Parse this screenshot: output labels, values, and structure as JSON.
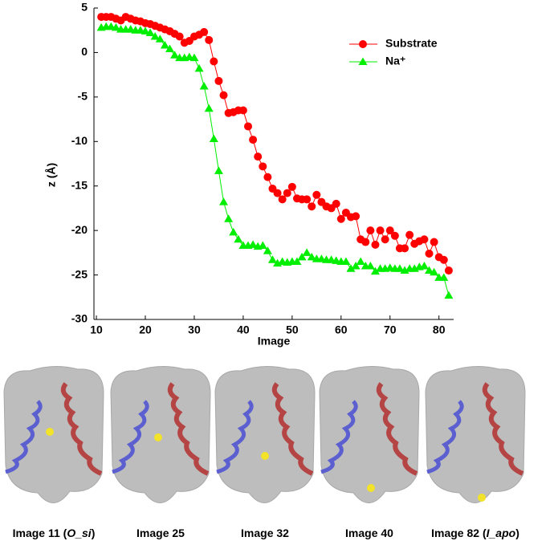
{
  "chart_data": {
    "type": "line",
    "x_label": "Image",
    "y_label": "z (Å)",
    "x": [
      11,
      12,
      13,
      14,
      15,
      16,
      17,
      18,
      19,
      20,
      21,
      22,
      23,
      24,
      25,
      26,
      27,
      28,
      29,
      30,
      31,
      32,
      33,
      34,
      35,
      36,
      37,
      38,
      39,
      40,
      41,
      42,
      43,
      44,
      45,
      46,
      47,
      48,
      49,
      50,
      51,
      52,
      53,
      54,
      55,
      56,
      57,
      58,
      59,
      60,
      61,
      62,
      63,
      64,
      65,
      66,
      67,
      68,
      69,
      70,
      71,
      72,
      73,
      74,
      75,
      76,
      77,
      78,
      79,
      80,
      81,
      82
    ],
    "series": [
      {
        "name": "Substrate",
        "color": "#ff0000",
        "marker": "circle",
        "values": [
          4,
          4,
          4,
          3.8,
          3.6,
          4,
          3.8,
          3.6,
          3.5,
          3.3,
          3.2,
          3,
          2.8,
          2.6,
          2.4,
          2.1,
          1.8,
          1.1,
          1.3,
          1.8,
          2,
          2.3,
          1.4,
          -1,
          -3.2,
          -4.8,
          -6.8,
          -6.7,
          -6.5,
          -6.5,
          -8.3,
          -9.8,
          -11.7,
          -12.8,
          -14,
          -15.3,
          -15.8,
          -16.5,
          -15.8,
          -15.1,
          -16.4,
          -16.5,
          -16.5,
          -17.3,
          -16,
          -16.8,
          -17.3,
          -17.5,
          -17,
          -18.7,
          -18,
          -18.5,
          -18.4,
          -21,
          -21.3,
          -20,
          -21.6,
          -20,
          -21,
          -20,
          -20.6,
          -22,
          -22,
          -20.5,
          -21.5,
          -21.2,
          -21,
          -22.6,
          -21.3,
          -23,
          -23.3,
          -24.5
        ]
      },
      {
        "name": "Na⁺",
        "color": "#00ee00",
        "marker": "triangle",
        "values": [
          2.8,
          2.9,
          2.9,
          2.8,
          2.6,
          2.6,
          2.6,
          2.5,
          2.5,
          2.4,
          2.2,
          1.8,
          1.5,
          0.8,
          0.4,
          -0.3,
          -0.6,
          -0.6,
          -0.5,
          -0.6,
          -1.8,
          -3.8,
          -6.3,
          -9.7,
          -13.3,
          -16.8,
          -18.7,
          -20.2,
          -21,
          -21.7,
          -21.7,
          -21.6,
          -21.8,
          -21.7,
          -22.3,
          -23.3,
          -23.7,
          -23.5,
          -23.6,
          -23.5,
          -23.5,
          -23,
          -22.5,
          -23,
          -23.2,
          -23.2,
          -23.3,
          -23.3,
          -23.4,
          -23.5,
          -23.5,
          -24.3,
          -24,
          -23.5,
          -24,
          -24,
          -24.6,
          -24.3,
          -24.3,
          -24.2,
          -24.3,
          -24.3,
          -24.5,
          -24.3,
          -24.3,
          -24.1,
          -24,
          -24.5,
          -24.7,
          -25.3,
          -25.3,
          -27.3
        ]
      }
    ],
    "xlim": [
      9.5,
      83
    ],
    "xticks": [
      10,
      20,
      30,
      40,
      50,
      60,
      70,
      80
    ],
    "ylim": [
      -30,
      5
    ],
    "yticks": [
      5,
      0,
      -5,
      -10,
      -15,
      -20,
      -25,
      -30
    ],
    "legend": "upper right"
  },
  "captions": [
    {
      "prefix": "Image 11 (",
      "italic": "O_si",
      "suffix": ")"
    },
    {
      "prefix": "Image 25"
    },
    {
      "prefix": "Image 32"
    },
    {
      "prefix": "Image 40"
    },
    {
      "prefix": "Image 82 (",
      "italic": "I_apo",
      "suffix": ")"
    }
  ]
}
